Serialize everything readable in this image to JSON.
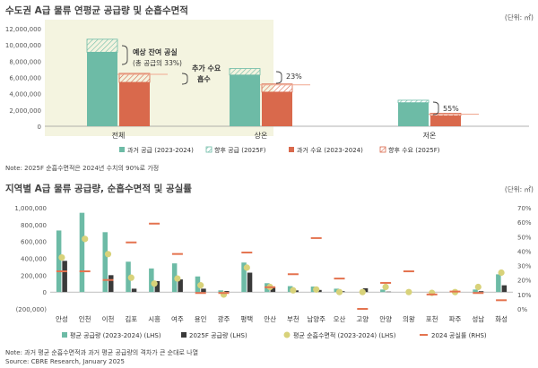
{
  "chart_data": [
    {
      "type": "bar",
      "title": "수도권 A급 물류 연평균 공급량 및 순흡수면적",
      "unit_label": "(단위: ㎡)",
      "categories": [
        "전체",
        "상온",
        "저온"
      ],
      "ylim": [
        0,
        12000000
      ],
      "yticks": [
        "0",
        "2,000,000",
        "4,000,000",
        "6,000,000",
        "8,000,000",
        "10,000,000",
        "12,000,000"
      ],
      "series": [
        {
          "name": "과거 공급 (2023-2024)",
          "values": [
            9100000,
            6300000,
            2900000
          ],
          "color": "#6dbba6"
        },
        {
          "name": "향후 공급 (2025F)",
          "values": [
            1600000,
            800000,
            300000
          ],
          "color": "#6dbba6"
        },
        {
          "name": "과거 수요 (2023-2024)",
          "values": [
            5400000,
            4200000,
            1300000
          ],
          "color": "#d9694c"
        },
        {
          "name": "향후 수요 (2025F)",
          "values": [
            1100000,
            1000000,
            300000
          ],
          "color": "#d9694c"
        }
      ],
      "annotations": [
        {
          "text": "예상 잔여 공실",
          "sub": "(총 공급의 33%)"
        },
        {
          "text": "추가 수요",
          "sub": "흡수"
        },
        {
          "text": "23%"
        },
        {
          "text": "55%"
        }
      ],
      "note": "Note: 2025F 순흡수면적은 2024년 수치의 90%로 가정"
    },
    {
      "type": "bar",
      "title": "지역별 A급 물류 공급량, 순흡수면적 및 공실률",
      "unit_label": "(단위: ㎡)",
      "categories": [
        "안성",
        "인천",
        "이천",
        "김포",
        "시흥",
        "여주",
        "용인",
        "광주",
        "평택",
        "안산",
        "부천",
        "남양주",
        "오산",
        "고양",
        "안양",
        "의왕",
        "포천",
        "파주",
        "성남",
        "화성"
      ],
      "ylim_left": [
        -200000,
        1000000
      ],
      "ylim_right": [
        0,
        70
      ],
      "yticks_left": [
        "(200,000)",
        "0",
        "200,000",
        "400,000",
        "600,000",
        "800,000",
        "1,000,000"
      ],
      "yticks_right": [
        "0%",
        "10%",
        "20%",
        "30%",
        "40%",
        "50%",
        "60%",
        "70%"
      ],
      "series": [
        {
          "name": "평균 공급량 (2023-2024) (LHS)",
          "values": [
            730000,
            940000,
            710000,
            360000,
            280000,
            340000,
            185000,
            20000,
            350000,
            105000,
            70000,
            65000,
            40000,
            0,
            30000,
            0,
            0,
            0,
            30000,
            210000
          ],
          "color": "#6dbba6"
        },
        {
          "name": "2025F 공급량 (LHS)",
          "values": [
            370000,
            0,
            200000,
            40000,
            130000,
            150000,
            40000,
            12000,
            230000,
            55000,
            20000,
            25000,
            10000,
            45000,
            5000,
            0,
            0,
            0,
            10000,
            80000
          ],
          "color": "#3a3a3a"
        },
        {
          "name": "평균 순흡수면적 (2023-2024) (LHS)",
          "values": [
            410000,
            630000,
            450000,
            170000,
            100000,
            160000,
            80000,
            -30000,
            290000,
            60000,
            20000,
            30000,
            0,
            0,
            60000,
            0,
            -10000,
            0,
            60000,
            230000
          ],
          "color": "#d8d27a"
        },
        {
          "name": "2024 공실률 (RHS)",
          "values": [
            26,
            26,
            20,
            46,
            59,
            38,
            11,
            11,
            39,
            15,
            24,
            49,
            21,
            0,
            18,
            26,
            10,
            12,
            11,
            6
          ],
          "color": "#e4734f"
        }
      ],
      "note": "Note: 과거 평균 순흡수면적과 과거 평균 공급량의 격차가 큰 순대로 나열",
      "source": "Source: CBRE Research, January 2025"
    }
  ]
}
